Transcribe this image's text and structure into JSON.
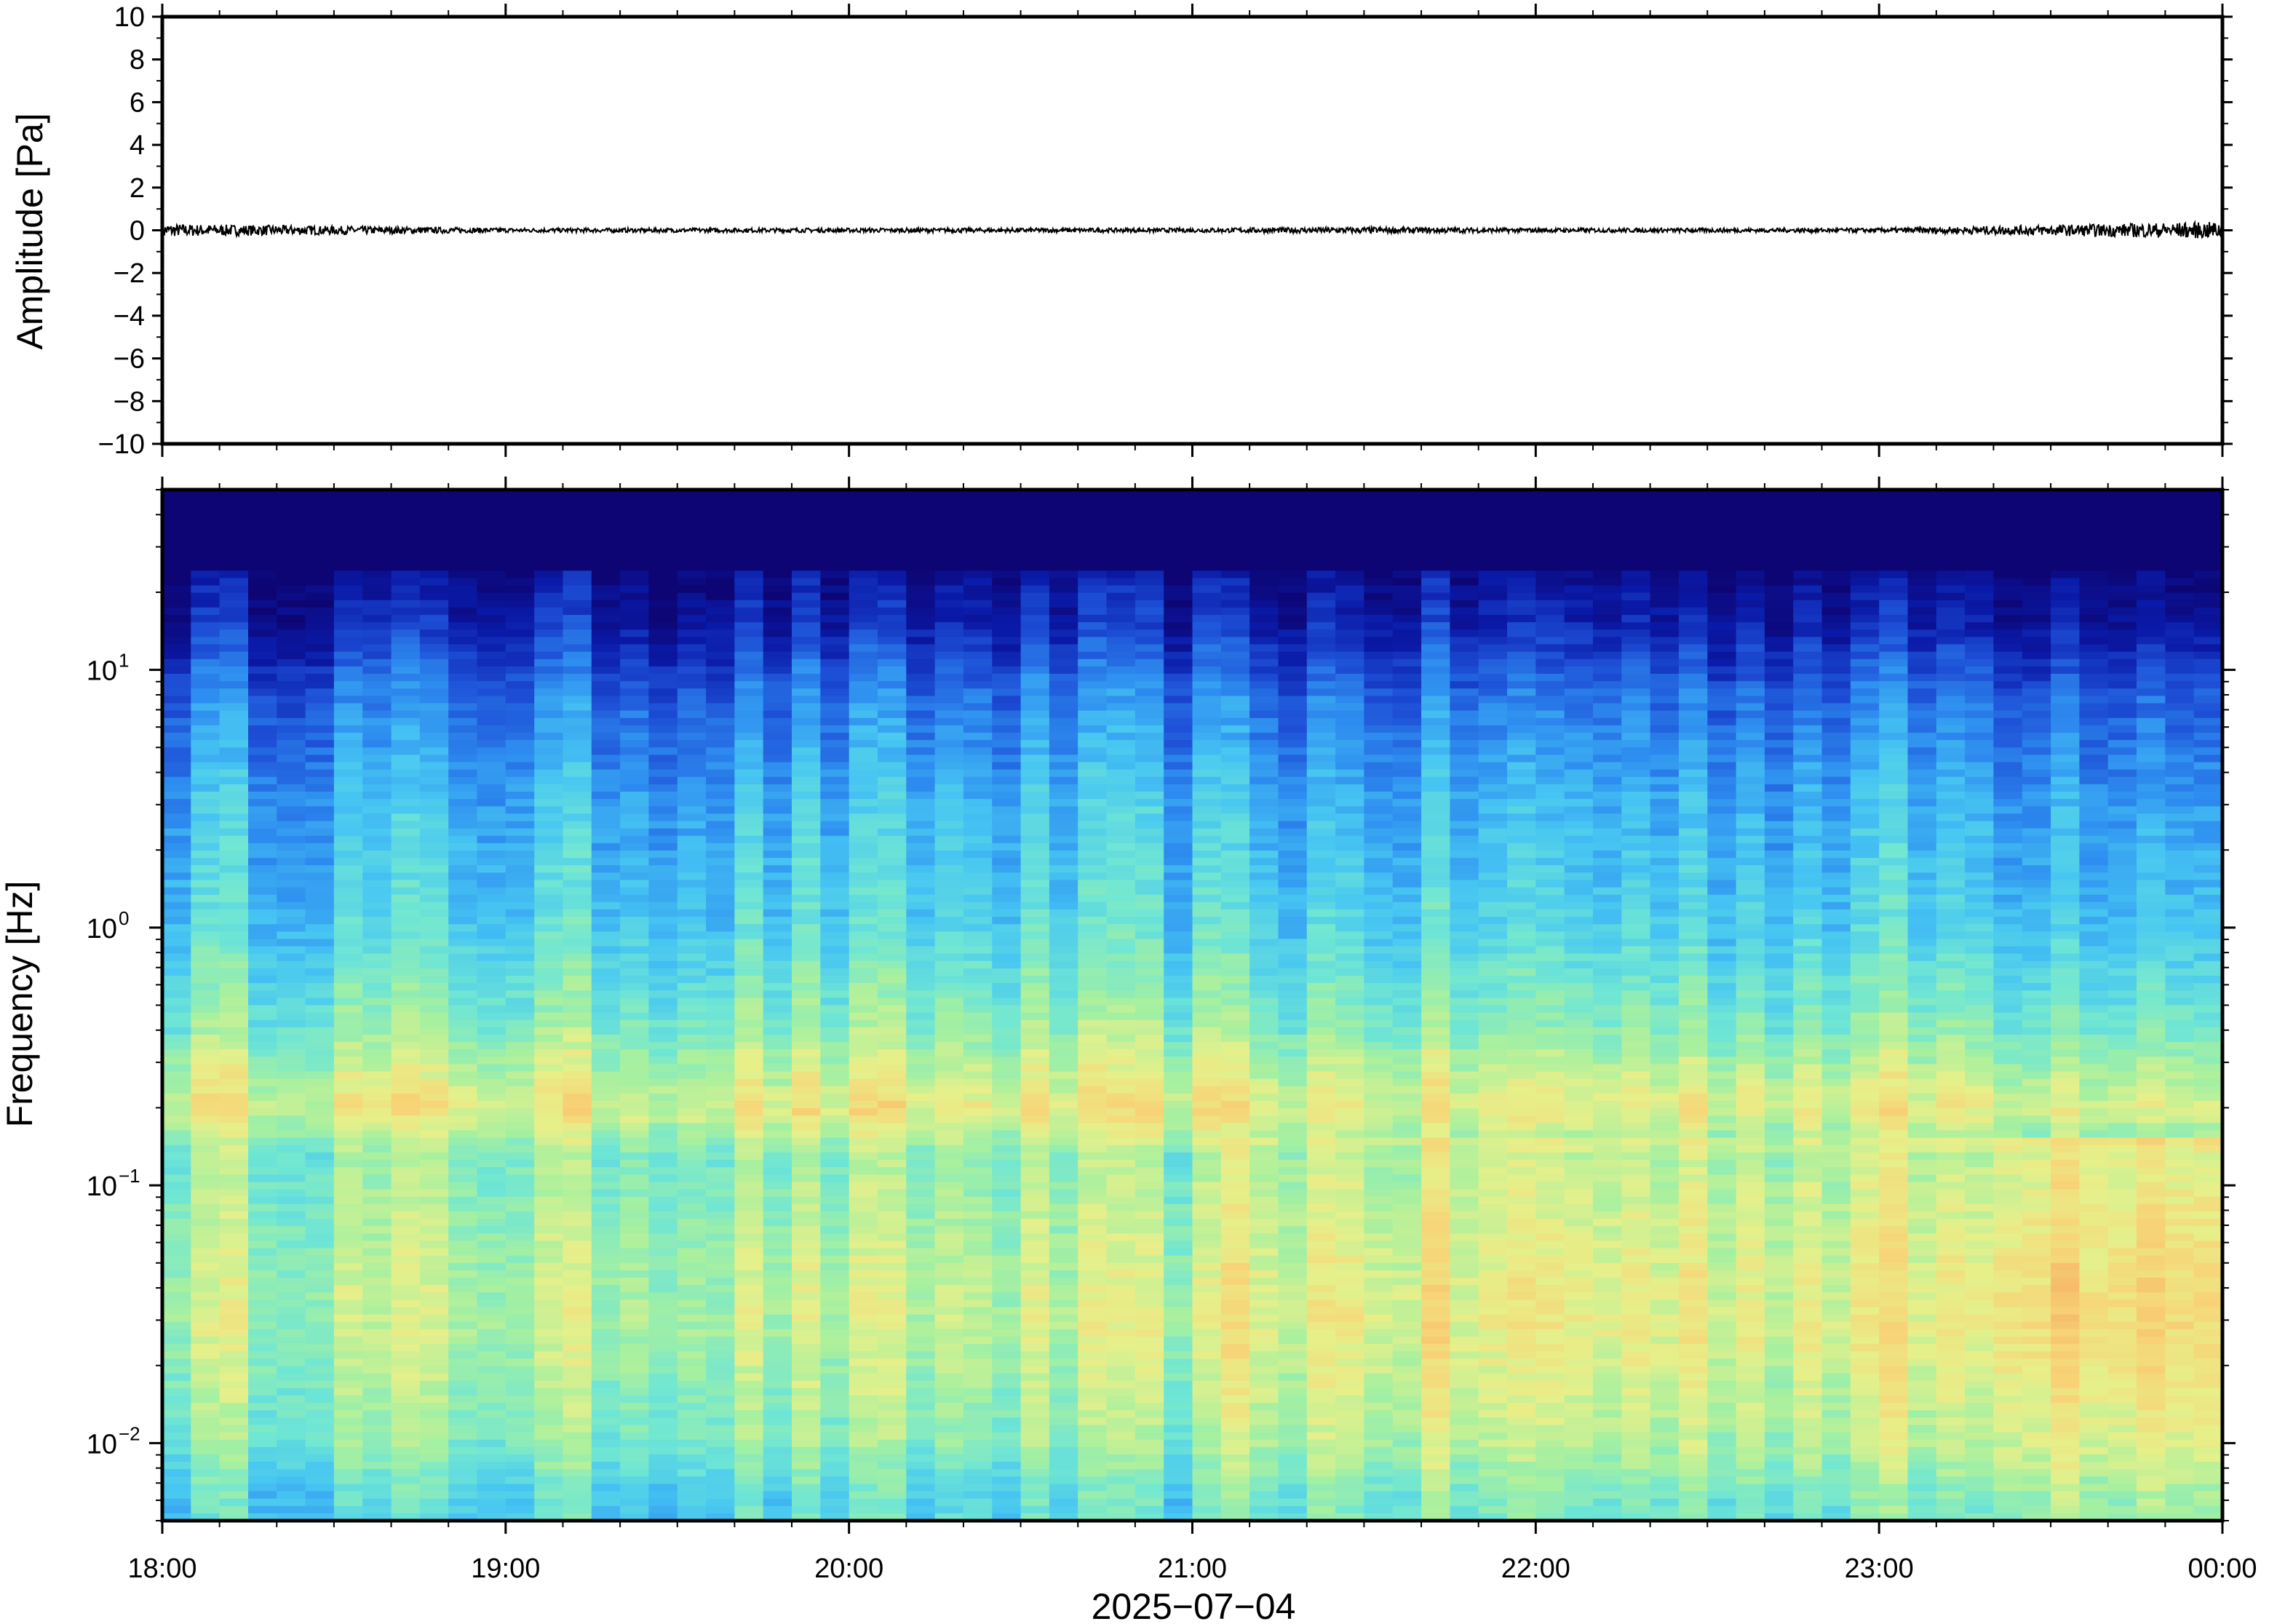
{
  "chart_data": [
    {
      "type": "line",
      "ylabel": "Amplitude [Pa]",
      "ylim": [
        -10,
        10
      ],
      "y_ticks": [
        "10",
        "8",
        "6",
        "4",
        "2",
        "0",
        "−2",
        "−4",
        "−6",
        "−8",
        "−10"
      ],
      "y_tick_values": [
        10,
        8,
        6,
        4,
        2,
        0,
        -2,
        -4,
        -6,
        -8,
        -10
      ],
      "series": [
        {
          "x": [
            "18:00",
            "18:30",
            "19:00",
            "19:30",
            "20:00",
            "20:30",
            "21:00",
            "21:30",
            "22:00",
            "22:30",
            "23:00",
            "23:30",
            "00:00"
          ],
          "values": [
            0.3,
            0.2,
            0.1,
            0.1,
            0.1,
            0.1,
            0.1,
            0.15,
            0.1,
            0.1,
            0.1,
            0.25,
            0.4
          ],
          "color": "#000000"
        }
      ],
      "grid": false
    },
    {
      "type": "heatmap",
      "ylabel": "Frequency [Hz]",
      "xlabel": "2025−07−04",
      "y_scale": "log",
      "ylim": [
        0.005,
        50
      ],
      "x_ticks": [
        "18:00",
        "19:00",
        "20:00",
        "21:00",
        "22:00",
        "23:00",
        "00:00"
      ],
      "y_ticks": [
        {
          "base": "10",
          "exp": "1"
        },
        {
          "base": "10",
          "exp": "0"
        },
        {
          "base": "10",
          "exp": "−1"
        },
        {
          "base": "10",
          "exp": "−2"
        }
      ],
      "y_tick_values": [
        10,
        1,
        0.1,
        0.01
      ],
      "colormap": [
        "#0d0573",
        "#0a1aa8",
        "#1d4fd6",
        "#2e8ef0",
        "#47c6f2",
        "#6fe6d4",
        "#a6f0a0",
        "#e6f08a",
        "#f7d477",
        "#f5a860",
        "#e8604a"
      ],
      "profile_levels": [
        {
          "freq": 30,
          "level": 0.02
        },
        {
          "freq": 15,
          "level": 0.12
        },
        {
          "freq": 8,
          "level": 0.26
        },
        {
          "freq": 3,
          "level": 0.37
        },
        {
          "freq": 1,
          "level": 0.44
        },
        {
          "freq": 0.4,
          "level": 0.56
        },
        {
          "freq": 0.2,
          "level": 0.72
        },
        {
          "freq": 0.13,
          "level": 0.56
        },
        {
          "freq": 0.07,
          "level": 0.6
        },
        {
          "freq": 0.03,
          "level": 0.64
        },
        {
          "freq": 0.01,
          "level": 0.55
        },
        {
          "freq": 0.006,
          "level": 0.45
        }
      ],
      "grid": false
    }
  ]
}
